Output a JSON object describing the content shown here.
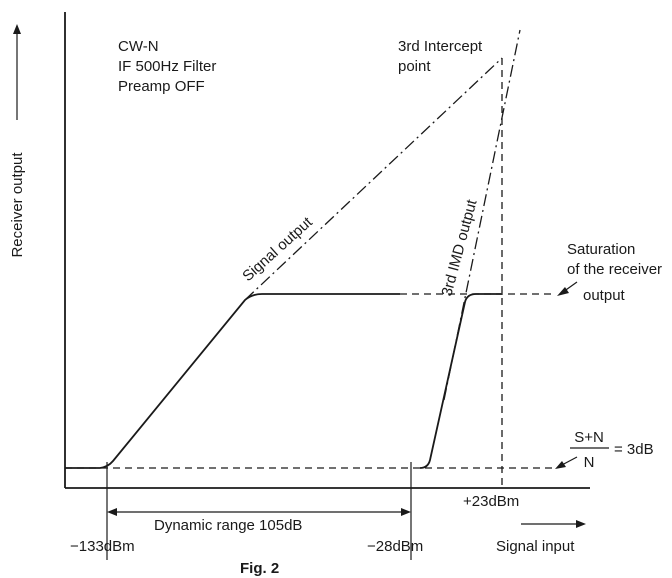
{
  "figure": {
    "caption": "Fig. 2",
    "conditions": [
      "CW-N",
      "IF 500Hz Filter",
      "Preamp OFF"
    ],
    "y_axis_label": "Receiver output",
    "x_axis_label": "Signal input",
    "curves": {
      "signal_output": "Signal output",
      "imd_output": "3rd IMD output",
      "intercept": [
        "3rd Intercept",
        "point"
      ],
      "saturation": [
        "Saturation",
        "of the receiver",
        "output"
      ]
    },
    "noise_floor": {
      "numerator": "S+N",
      "denominator": "N",
      "value": "= 3dB"
    },
    "x_marks": {
      "low": "−133dBm",
      "mid": "−28dBm",
      "intercept": "+23dBm"
    },
    "dynamic_range": "Dynamic range 105dB"
  }
}
